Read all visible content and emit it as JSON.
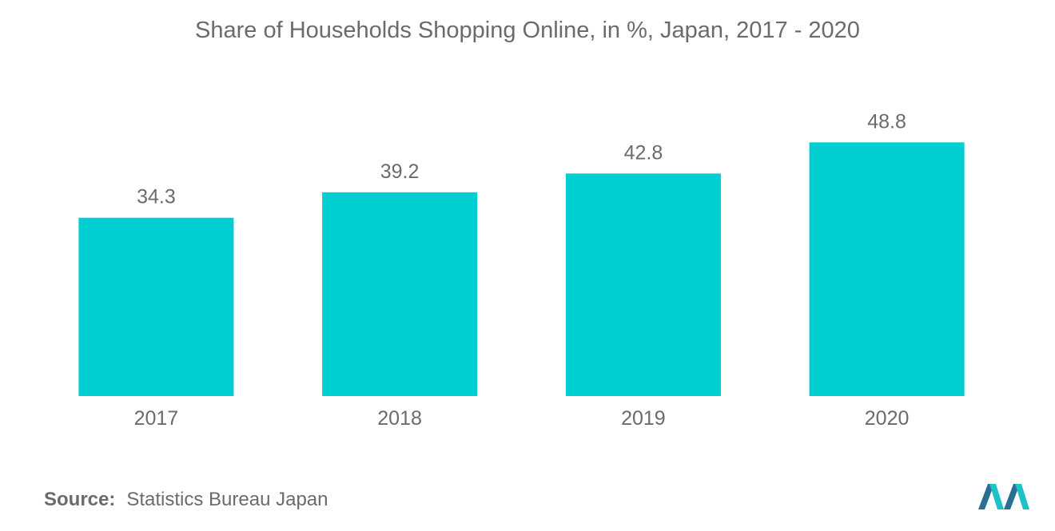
{
  "chart_data": {
    "type": "bar",
    "title": "Share of Households Shopping Online, in %, Japan, 2017 - 2020",
    "categories": [
      "2017",
      "2018",
      "2019",
      "2020"
    ],
    "values": [
      34.3,
      39.2,
      42.8,
      48.8
    ],
    "data_labels": [
      "34.3",
      "39.2",
      "42.8",
      "48.8"
    ],
    "xlabel": "",
    "ylabel": "",
    "ylim": [
      0,
      49.3
    ],
    "grid": false,
    "legend": "none",
    "bar_color": "#00ced1"
  },
  "source": {
    "label": "Source:",
    "text": "Statistics Bureau Japan"
  },
  "colors": {
    "text": "#6b6b6b",
    "logo_dark": "#2a6f93",
    "logo_light": "#1fc1c9"
  }
}
